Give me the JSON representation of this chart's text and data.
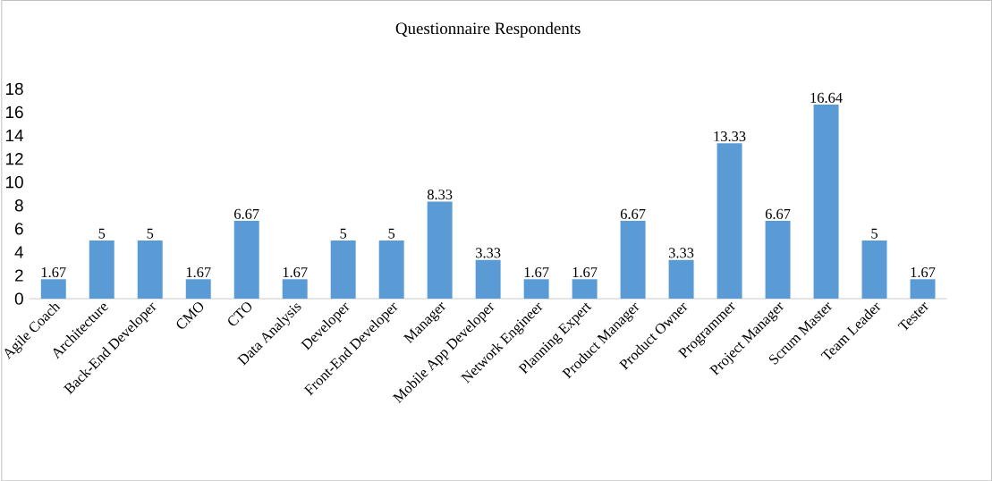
{
  "chart_data": {
    "type": "bar",
    "title": "Questionnaire Respondents",
    "categories": [
      "Agile Coach",
      "Architecture",
      "Back-End Developer",
      "CMO",
      "CTO",
      "Data Analysis",
      "Developer",
      "Front-End Developer",
      "Manager",
      "Mobile App Developer",
      "Network Engineer",
      "Planning Expert",
      "Product Manager",
      "Product Owner",
      "Programmer",
      "Project Manager",
      "Scrum Master",
      "Team Leader",
      "Tester"
    ],
    "values": [
      1.67,
      5,
      5,
      1.67,
      6.67,
      1.67,
      5,
      5,
      8.33,
      3.33,
      1.67,
      1.67,
      6.67,
      3.33,
      13.33,
      6.67,
      16.64,
      5,
      1.67
    ],
    "color": "#5b9bd5",
    "ylim": [
      0,
      18
    ],
    "yticks": [
      0,
      2,
      4,
      6,
      8,
      10,
      12,
      14,
      16,
      18
    ],
    "data_labels": true
  }
}
